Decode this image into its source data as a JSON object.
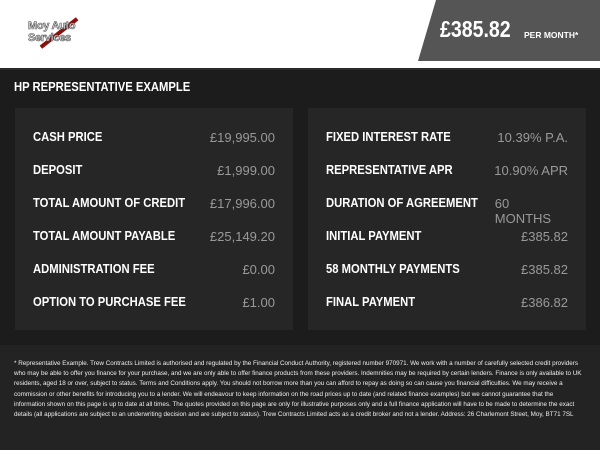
{
  "header": {
    "logo_text": [
      "Moy Auto",
      "Services"
    ],
    "price": "£385.82",
    "per_month": "PER MONTH*",
    "accent_color": "#8a1010"
  },
  "title": "HP REPRESENTATIVE EXAMPLE",
  "left": [
    {
      "label": "CASH PRICE",
      "value": "£19,995.00"
    },
    {
      "label": "DEPOSIT",
      "value": "£1,999.00"
    },
    {
      "label": "TOTAL AMOUNT OF CREDIT",
      "value": "£17,996.00"
    },
    {
      "label": "TOTAL AMOUNT PAYABLE",
      "value": "£25,149.20"
    },
    {
      "label": "ADMINISTRATION FEE",
      "value": "£0.00"
    },
    {
      "label": "OPTION TO PURCHASE FEE",
      "value": "£1.00"
    }
  ],
  "right": [
    {
      "label": "FIXED INTEREST RATE",
      "value": "10.39% P.A."
    },
    {
      "label": "REPRESENTATIVE APR",
      "value": "10.90% APR"
    },
    {
      "label": "DURATION OF AGREEMENT",
      "value": "60 MONTHS"
    },
    {
      "label": "INITIAL PAYMENT",
      "value": "£385.82"
    },
    {
      "label": "58 MONTHLY PAYMENTS",
      "value": "£385.82"
    },
    {
      "label": "FINAL PAYMENT",
      "value": "£386.82"
    }
  ],
  "footer": "* Representative Example. Trew Contracts Limited is authorised and regulated by the Financial Conduct Authority, registered number 970971. We work with a number of carefully selected credit providers who may be able to offer you finance for your purchase, and we are only able to offer finance products from these providers. Indemnities may be required by certain lenders. Finance is only available to UK residents, aged 18 or over, subject to status. Terms and Conditions apply. You should not borrow more than you can afford to repay as doing so can cause you financial difficulties. We may receive a commission or other benefits for introducing you to a lender. We will endeavour to keep information on the road prices up to date (and related finance examples) but we cannot guarantee that the information shown on this page is up to date at all times. The quotes provided on this page are only for illustrative purposes only and a full finance application will have to be made to determine the exact details (all applications are subject to an underwriting decision and are subject to status). Trew Contracts Limited acts as a credit broker and not a lender. Address: 26 Charlemont Street, Moy, BT71 7SL"
}
